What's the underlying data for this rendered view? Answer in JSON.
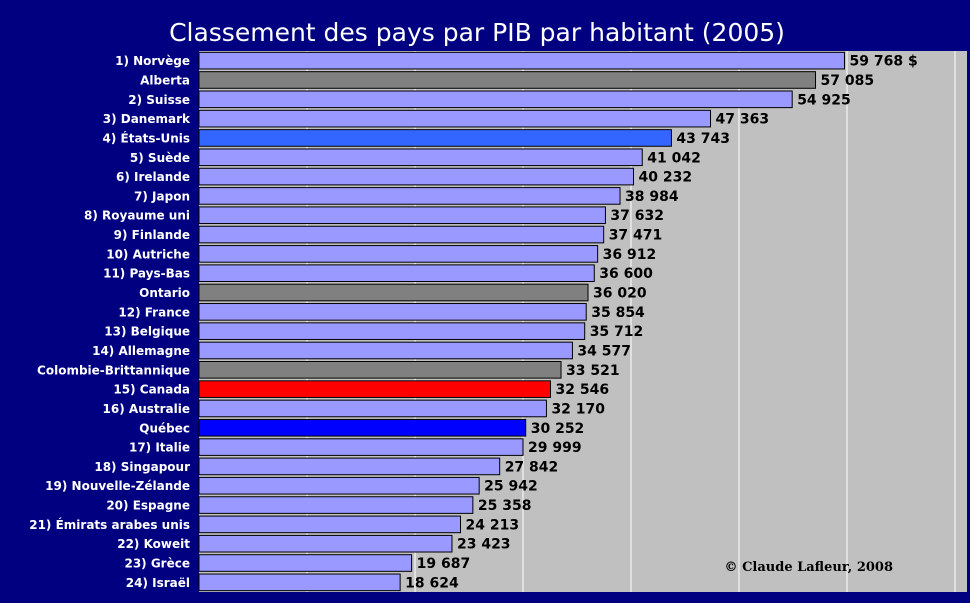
{
  "chart_data": {
    "type": "bar",
    "orientation": "horizontal",
    "title": "Classement des pays par PIB par habitant (2005)",
    "credit": "© Claude Lafleur, 2008",
    "xlim": [
      0,
      70000
    ],
    "grid": true,
    "colors": {
      "background": "#000080",
      "plot_area": "#c0c0c0",
      "gridline": "#ffffff",
      "country": "#9999ff",
      "province": "#808080",
      "usa": "#3366ff",
      "canada": "#ff0000",
      "quebec": "#0000ff"
    },
    "categories": [
      "1) Norvège",
      "Alberta",
      "2) Suisse",
      "3) Danemark",
      "4) États-Unis",
      "5) Suède",
      "6) Irelande",
      "7) Japon",
      "8) Royaume uni",
      "9) Finlande",
      "10) Autriche",
      "11) Pays-Bas",
      "Ontario",
      "12) France",
      "13) Belgique",
      "14) Allemagne",
      "Colombie-Brittannique",
      "15) Canada",
      "16) Australie",
      "Québec",
      "17) Italie",
      "18) Singapour",
      "19) Nouvelle-Zélande",
      "20) Espagne",
      "21) Émirats arabes unis",
      "22) Koweit",
      "23) Grèce",
      "24) Israël"
    ],
    "values": [
      59768,
      57085,
      54925,
      47363,
      43743,
      41042,
      40232,
      38984,
      37632,
      37471,
      36912,
      36600,
      36020,
      35854,
      35712,
      34577,
      33521,
      32546,
      32170,
      30252,
      29999,
      27842,
      25942,
      25358,
      24213,
      23423,
      19687,
      18624
    ],
    "value_labels": [
      "59 768 $",
      "57 085",
      "54 925",
      "47 363",
      "43 743",
      "41 042",
      "40 232",
      "38 984",
      "37 632",
      "37 471",
      "36 912",
      "36 600",
      "36 020",
      "35 854",
      "35 712",
      "34 577",
      "33 521",
      "32 546",
      "32 170",
      "30 252",
      "29 999",
      "27 842",
      "25 942",
      "25 358",
      "24 213",
      "23 423",
      "19 687",
      "18 624"
    ],
    "bar_groups": [
      "country",
      "province",
      "country",
      "country",
      "usa",
      "country",
      "country",
      "country",
      "country",
      "country",
      "country",
      "country",
      "province",
      "country",
      "country",
      "country",
      "province",
      "canada",
      "country",
      "quebec",
      "country",
      "country",
      "country",
      "country",
      "country",
      "country",
      "country",
      "country"
    ]
  }
}
